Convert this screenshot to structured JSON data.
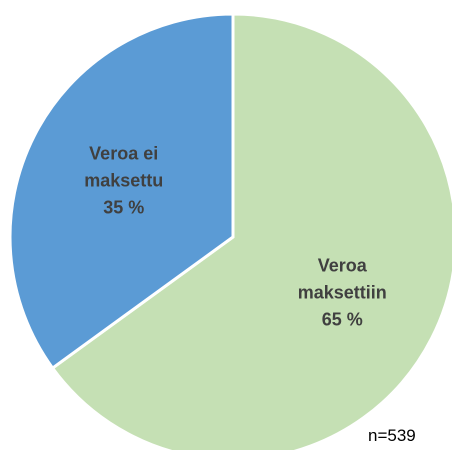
{
  "chart_data": {
    "type": "pie",
    "categories": [
      "Veroa maksettiin",
      "Veroa ei maksettu"
    ],
    "values": [
      65,
      35
    ],
    "value_labels": [
      "65 %",
      "35 %"
    ],
    "colors": [
      "#c5e0b4",
      "#5b9bd5"
    ],
    "annotation": "n=539"
  }
}
